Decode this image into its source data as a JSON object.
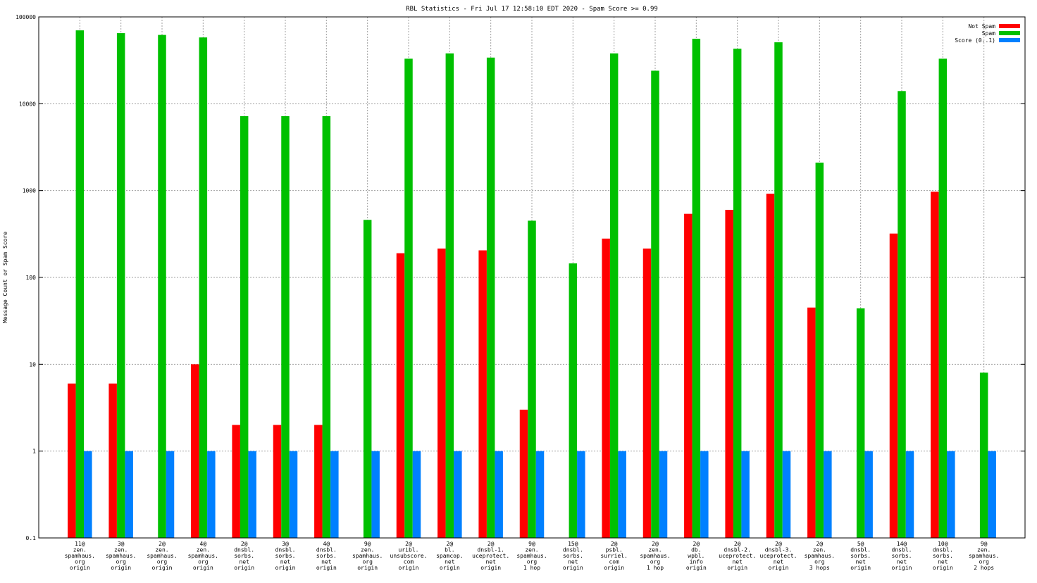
{
  "chart_data": {
    "type": "bar",
    "title": "RBL Statistics - Fri Jul 17 12:58:10 EDT 2020 - Spam Score >= 0.99",
    "xlabel": "",
    "ylabel": "Message Count or Spam Score",
    "yscale": "log",
    "ylim": [
      0.1,
      100000
    ],
    "yticks": [
      "0.1",
      "1",
      "10",
      "100",
      "1000",
      "10000",
      "100000"
    ],
    "grid": true,
    "legend_position": "top-right",
    "categories": [
      [
        "11@",
        "zen.",
        "spamhaus.",
        "org",
        "origin"
      ],
      [
        "3@",
        "zen.",
        "spamhaus.",
        "org",
        "origin"
      ],
      [
        "2@",
        "zen.",
        "spamhaus.",
        "org",
        "origin"
      ],
      [
        "4@",
        "zen.",
        "spamhaus.",
        "org",
        "origin"
      ],
      [
        "2@",
        "dnsbl.",
        "sorbs.",
        "net",
        "origin"
      ],
      [
        "3@",
        "dnsbl.",
        "sorbs.",
        "net",
        "origin"
      ],
      [
        "4@",
        "dnsbl.",
        "sorbs.",
        "net",
        "origin"
      ],
      [
        "9@",
        "zen.",
        "spamhaus.",
        "org",
        "origin"
      ],
      [
        "2@",
        "uribl.",
        "unsubscore.",
        "com",
        "origin"
      ],
      [
        "2@",
        "bl.",
        "spamcop.",
        "net",
        "origin"
      ],
      [
        "2@",
        "dnsbl-1.",
        "uceprotect.",
        "net",
        "origin"
      ],
      [
        "9@",
        "zen.",
        "spamhaus.",
        "org",
        "1 hop"
      ],
      [
        "15@",
        "dnsbl.",
        "sorbs.",
        "net",
        "origin"
      ],
      [
        "2@",
        "psbl.",
        "surriel.",
        "com",
        "origin"
      ],
      [
        "2@",
        "zen.",
        "spamhaus.",
        "org",
        "1 hop"
      ],
      [
        "2@",
        "db.",
        "wpbl.",
        "info",
        "origin"
      ],
      [
        "2@",
        "dnsbl-2.",
        "uceprotect.",
        "net",
        "origin"
      ],
      [
        "2@",
        "dnsbl-3.",
        "uceprotect.",
        "net",
        "origin"
      ],
      [
        "2@",
        "zen.",
        "spamhaus.",
        "org",
        "3 hops"
      ],
      [
        "5@",
        "dnsbl.",
        "sorbs.",
        "net",
        "origin"
      ],
      [
        "14@",
        "dnsbl.",
        "sorbs.",
        "net",
        "origin"
      ],
      [
        "10@",
        "dnsbl.",
        "sorbs.",
        "net",
        "origin"
      ],
      [
        "9@",
        "zen.",
        "spamhaus.",
        "org",
        "2 hops"
      ]
    ],
    "series": [
      {
        "name": "Not Spam",
        "color": "#ff0000",
        "values": [
          6,
          6,
          null,
          10,
          2,
          2,
          2,
          null,
          190,
          215,
          205,
          3,
          null,
          280,
          215,
          540,
          600,
          920,
          45,
          null,
          320,
          970,
          null
        ]
      },
      {
        "name": "Spam",
        "color": "#00c000",
        "values": [
          70000,
          65000,
          62000,
          58000,
          7200,
          7200,
          7200,
          460,
          33000,
          38000,
          34000,
          450,
          145,
          38000,
          24000,
          56000,
          43000,
          51000,
          2100,
          44,
          14000,
          33000,
          8
        ]
      },
      {
        "name": "Score (0..1)",
        "color": "#0080ff",
        "values": [
          1,
          1,
          1,
          1,
          1,
          1,
          1,
          1,
          1,
          1,
          1,
          1,
          1,
          1,
          1,
          1,
          1,
          1,
          1,
          1,
          1,
          1,
          1
        ]
      }
    ]
  }
}
